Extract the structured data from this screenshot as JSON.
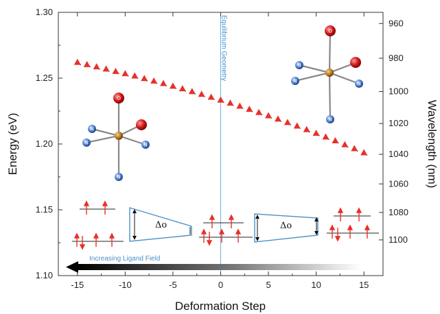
{
  "chart_data": {
    "type": "scatter",
    "xlabel": "Deformation Step",
    "ylabel": "Energy (eV)",
    "y2label": "Wavelength (nm)",
    "xlim": [
      -17,
      17
    ],
    "ylim": [
      1.1,
      1.3
    ],
    "x_ticks": [
      "-15",
      "-10",
      "-5",
      "0",
      "5",
      "10",
      "15"
    ],
    "y_ticks": [
      "1.10",
      "1.15",
      "1.20",
      "1.25",
      "1.30"
    ],
    "y2_ticks": [
      "960",
      "980",
      "1000",
      "1020",
      "1040",
      "1060",
      "1080",
      "1100"
    ],
    "marker_color": "#e8302a",
    "series": [
      {
        "x": [
          -15,
          -14,
          -13,
          -12,
          -11,
          -10,
          -9,
          -8,
          -7,
          -6,
          -5,
          -4,
          -3,
          -2,
          -1,
          0,
          1,
          2,
          3,
          4,
          5,
          6,
          7,
          8,
          9,
          10,
          11,
          12,
          13,
          14,
          15
        ],
        "y": [
          1.2622,
          1.2605,
          1.2588,
          1.2571,
          1.2553,
          1.2536,
          1.2518,
          1.2499,
          1.248,
          1.2461,
          1.2441,
          1.2421,
          1.24,
          1.2379,
          1.2357,
          1.2335,
          1.2312,
          1.2289,
          1.2265,
          1.2241,
          1.2216,
          1.2191,
          1.2165,
          1.2138,
          1.2111,
          1.2083,
          1.2055,
          1.2026,
          1.1996,
          1.1966,
          1.1935
        ]
      }
    ],
    "annotations": {
      "equilibrium_label": "Equilibrium Geometry",
      "equilibrium_x": 0,
      "ligand_field_label": "Increasing Ligand Field",
      "delta_label": "Δo",
      "ligand_atom": "N",
      "axial_atom": "O"
    }
  }
}
